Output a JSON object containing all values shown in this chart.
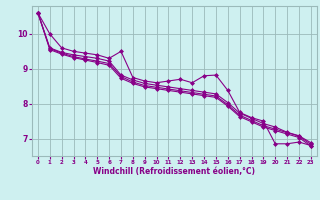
{
  "xlabel": "Windchill (Refroidissement éolien,°C)",
  "background_color": "#cef0f0",
  "grid_color": "#9bbaba",
  "line_color": "#880088",
  "x": [
    0,
    1,
    2,
    3,
    4,
    5,
    6,
    7,
    8,
    9,
    10,
    11,
    12,
    13,
    14,
    15,
    16,
    17,
    18,
    19,
    20,
    21,
    22,
    23
  ],
  "line1": [
    10.6,
    10.0,
    9.6,
    9.5,
    9.45,
    9.4,
    9.3,
    9.5,
    8.75,
    8.65,
    8.6,
    8.65,
    8.7,
    8.6,
    8.8,
    8.82,
    8.38,
    7.75,
    7.6,
    7.5,
    6.85,
    6.85,
    6.9,
    6.8
  ],
  "line2": [
    10.6,
    9.6,
    9.47,
    9.4,
    9.35,
    9.3,
    9.22,
    8.82,
    8.68,
    8.58,
    8.53,
    8.48,
    8.43,
    8.38,
    8.33,
    8.28,
    8.03,
    7.73,
    7.58,
    7.43,
    7.33,
    7.18,
    7.08,
    6.88
  ],
  "line3": [
    10.6,
    9.58,
    9.45,
    9.35,
    9.28,
    9.22,
    9.15,
    8.78,
    8.62,
    8.52,
    8.47,
    8.42,
    8.37,
    8.32,
    8.27,
    8.22,
    7.97,
    7.67,
    7.52,
    7.37,
    7.27,
    7.17,
    7.07,
    6.83
  ],
  "line4": [
    10.6,
    9.55,
    9.42,
    9.32,
    9.25,
    9.18,
    9.1,
    8.73,
    8.58,
    8.48,
    8.43,
    8.38,
    8.33,
    8.28,
    8.23,
    8.18,
    7.93,
    7.63,
    7.48,
    7.33,
    7.23,
    7.13,
    7.03,
    6.78
  ],
  "ylim_min": 6.5,
  "ylim_max": 10.8,
  "yticks": [
    7,
    8,
    9,
    10
  ],
  "xticks": [
    0,
    1,
    2,
    3,
    4,
    5,
    6,
    7,
    8,
    9,
    10,
    11,
    12,
    13,
    14,
    15,
    16,
    17,
    18,
    19,
    20,
    21,
    22,
    23
  ],
  "marker": "D",
  "markersize": 2.0,
  "linewidth": 0.8
}
